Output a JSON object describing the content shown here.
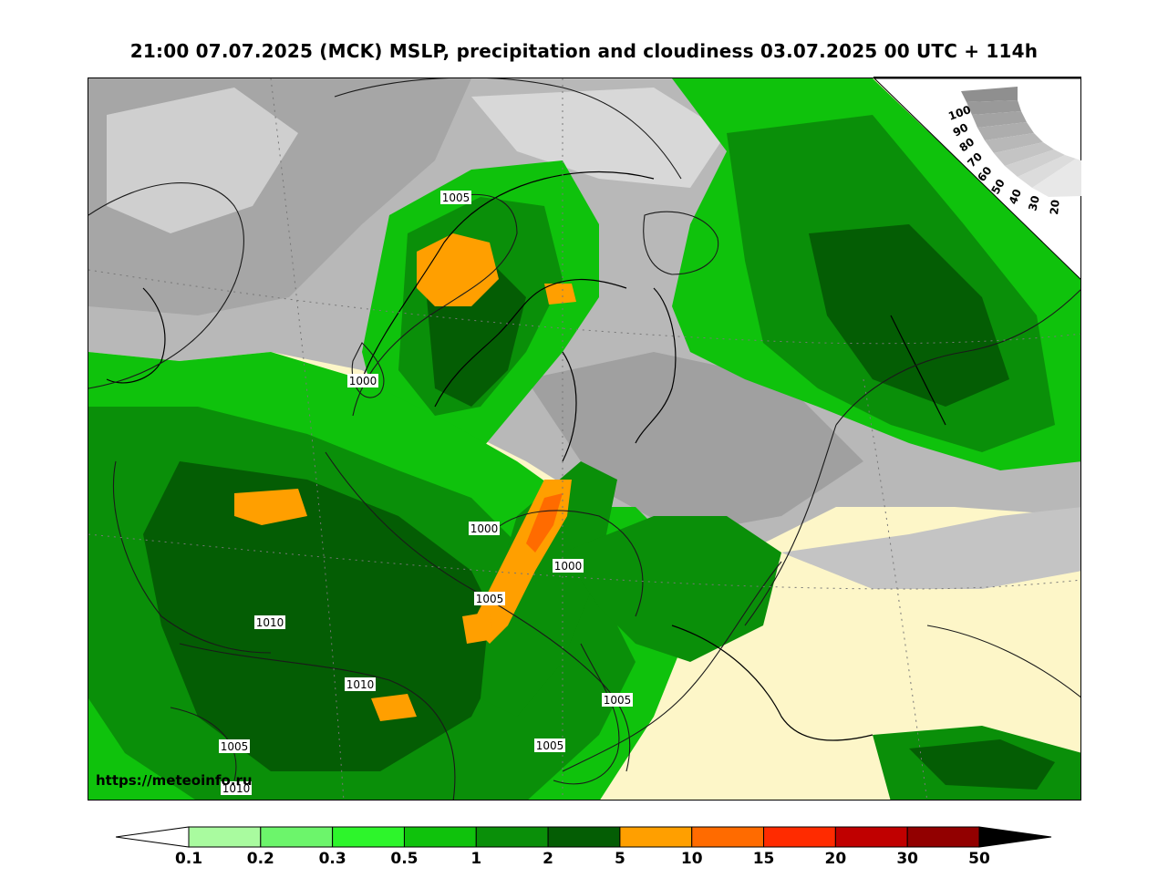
{
  "header": {
    "title": "21:00 07.07.2025 (MCK) MSLP, precipitation and cloudiness 03.07.2025 00 UTC + 114h"
  },
  "map": {
    "isobar_labels": [
      "1005",
      "1000",
      "1000",
      "1000",
      "1005",
      "1010",
      "1010",
      "1005",
      "1005",
      "1005",
      "1010"
    ],
    "watermark": "https://meteoinfo.ru"
  },
  "cloudiness_legend": {
    "labels": [
      "100",
      "90",
      "80",
      "70",
      "60",
      "50",
      "40",
      "30",
      "20"
    ]
  },
  "precip_legend": {
    "ticks": [
      "0.1",
      "0.2",
      "0.3",
      "0.5",
      "1",
      "2",
      "5",
      "10",
      "15",
      "20",
      "30",
      "50"
    ],
    "colors": [
      "#a9fb9f",
      "#6cf56b",
      "#2df52b",
      "#0fc20c",
      "#0a8f09",
      "#045d04",
      "#ff9f00",
      "#ff6b00",
      "#ff2b00",
      "#c00000",
      "#920000"
    ],
    "under_color": "#ffffff",
    "over_color": "#000000"
  },
  "colors": {
    "land_clear": "#fdf6c8",
    "sea_cloud_gray": "#9a9a9a",
    "precip_dark_green": "#045d04",
    "precip_orange": "#ff9f00"
  }
}
